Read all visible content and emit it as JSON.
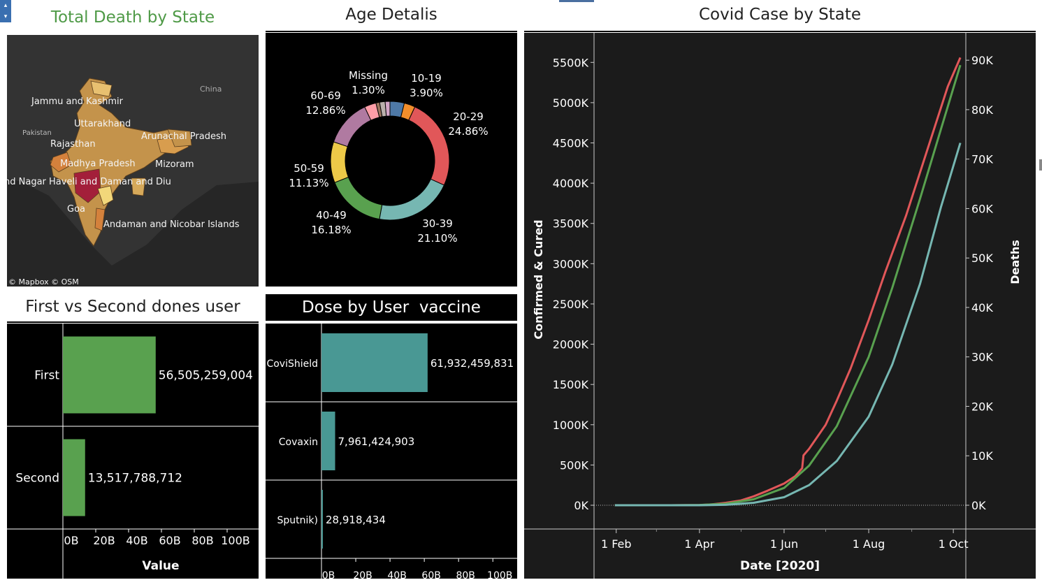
{
  "colors": {
    "map_title": "#4f9a47",
    "title": "#222222",
    "panel_bg": "#000000",
    "line_panel_bg": "#1b1b1b",
    "bar_green": "#59a14f",
    "bar_teal": "#499894",
    "line_red": "#e15759",
    "line_green": "#59a14f",
    "line_teal": "#76b7b2"
  },
  "map": {
    "title": "Total Death by State",
    "credit": "© Mapbox © OSM",
    "labels": [
      "China",
      "Jammu and Kashmir",
      "Uttarakhand",
      "Pakistan",
      "Arunachal Pradesh",
      "Rajasthan",
      "Madhya Pradesh",
      "Mizoram",
      "nd Nagar Haveli and Daman and Diu",
      "Goa",
      "Andaman and Nicobar Islands"
    ]
  },
  "controls": {
    "up": "▴",
    "down": "▾"
  },
  "chart_data": [
    {
      "id": "age",
      "type": "pie",
      "title": "Age Detalis",
      "slices": [
        {
          "label": "10-19",
          "pct": "3.90%",
          "value": 3.9,
          "color": "#4e79a7"
        },
        {
          "label": "",
          "pct": "",
          "value": 3.0,
          "color": "#f28e2b"
        },
        {
          "label": "20-29",
          "pct": "24.86%",
          "value": 24.86,
          "color": "#e15759"
        },
        {
          "label": "30-39",
          "pct": "21.10%",
          "value": 21.1,
          "color": "#76b7b2"
        },
        {
          "label": "40-49",
          "pct": "16.18%",
          "value": 16.18,
          "color": "#59a14f"
        },
        {
          "label": "50-59",
          "pct": "11.13%",
          "value": 11.13,
          "color": "#edc948"
        },
        {
          "label": "60-69",
          "pct": "12.86%",
          "value": 12.86,
          "color": "#b07aa1"
        },
        {
          "label": "",
          "pct": "",
          "value": 3.2,
          "color": "#ff9da7"
        },
        {
          "label": "",
          "pct": "",
          "value": 1.0,
          "color": "#9c755f"
        },
        {
          "label": "",
          "pct": "",
          "value": 1.5,
          "color": "#bab0ac"
        },
        {
          "label": "Missing",
          "pct": "1.30%",
          "value": 1.3,
          "color": "#d4a6c8"
        }
      ]
    },
    {
      "id": "first_second",
      "type": "bar",
      "title": "First vs Second dones user",
      "categories": [
        "First",
        "Second"
      ],
      "values": [
        56505259004,
        13517788712
      ],
      "value_labels": [
        "56,505,259,004",
        "13,517,788,712"
      ],
      "xlabel": "Value",
      "xlim": [
        0,
        120
      ],
      "ticks": [
        "0B",
        "20B",
        "40B",
        "60B",
        "80B",
        "100B"
      ],
      "tick_values": [
        0,
        20,
        40,
        60,
        80,
        100
      ]
    },
    {
      "id": "dose",
      "type": "bar",
      "title": "Dose by User  vaccine",
      "categories": [
        "CoviShield",
        "Covaxin",
        "Sputnik)"
      ],
      "values": [
        61932459831,
        7961424903,
        28918434
      ],
      "value_labels": [
        "61,932,459,831",
        "7,961,424,903",
        "28,918,434"
      ],
      "xlim": [
        0,
        115
      ],
      "ticks": [
        "0B",
        "20B",
        "40B",
        "60B",
        "80B",
        "100B"
      ],
      "tick_values": [
        0,
        20,
        40,
        60,
        80,
        100
      ]
    },
    {
      "id": "covid",
      "type": "line",
      "title": "Covid Case by State",
      "xlabel": "Date [2020]",
      "ylabel": "Confirmed  & Cured",
      "y2label": "Deaths",
      "ylim": [
        0,
        5650
      ],
      "y2lim": [
        0,
        92000
      ],
      "x_ticks": [
        "1 Feb",
        "1 Apr",
        "1 Jun",
        "1 Aug",
        "1 Oct"
      ],
      "x_tick_days": [
        31,
        91,
        152,
        213,
        274
      ],
      "xlim": [
        15,
        283
      ],
      "y_ticks": [
        "0K",
        "500K",
        "1000K",
        "1500K",
        "2000K",
        "2500K",
        "3000K",
        "3500K",
        "4000K",
        "4500K",
        "5000K",
        "5500K"
      ],
      "y_tick_values": [
        0,
        500,
        1000,
        1500,
        2000,
        2500,
        3000,
        3500,
        4000,
        4500,
        5000,
        5500
      ],
      "y2_ticks": [
        "0K",
        "10K",
        "20K",
        "30K",
        "40K",
        "50K",
        "60K",
        "70K",
        "80K",
        "90K"
      ],
      "y2_tick_values": [
        0,
        10000,
        20000,
        30000,
        40000,
        50000,
        60000,
        70000,
        80000,
        90000
      ],
      "series": [
        {
          "name": "Confirmed",
          "color": "#e15759",
          "axis": "left",
          "x": [
            30,
            70,
            80,
            91,
            100,
            110,
            121,
            130,
            140,
            152,
            160,
            165,
            166,
            170,
            182,
            190,
            200,
            213,
            225,
            240,
            255,
            270,
            279
          ],
          "y": [
            0,
            0,
            1,
            2,
            10,
            30,
            60,
            110,
            180,
            270,
            360,
            460,
            620,
            700,
            1000,
            1300,
            1700,
            2300,
            2900,
            3600,
            4400,
            5200,
            5560
          ]
        },
        {
          "name": "Deaths",
          "color": "#59a14f",
          "axis": "right",
          "x": [
            30,
            70,
            91,
            110,
            130,
            152,
            170,
            190,
            213,
            230,
            250,
            265,
            279
          ],
          "y": [
            0,
            0,
            50,
            300,
            1200,
            3500,
            8000,
            16000,
            30000,
            44000,
            62000,
            76000,
            89000
          ]
        },
        {
          "name": "Cured",
          "color": "#76b7b2",
          "axis": "left",
          "x": [
            30,
            70,
            91,
            110,
            130,
            152,
            170,
            190,
            213,
            230,
            250,
            265,
            279
          ],
          "y": [
            0,
            0,
            0,
            5,
            30,
            100,
            250,
            550,
            1100,
            1750,
            2750,
            3700,
            4500
          ]
        }
      ]
    }
  ]
}
